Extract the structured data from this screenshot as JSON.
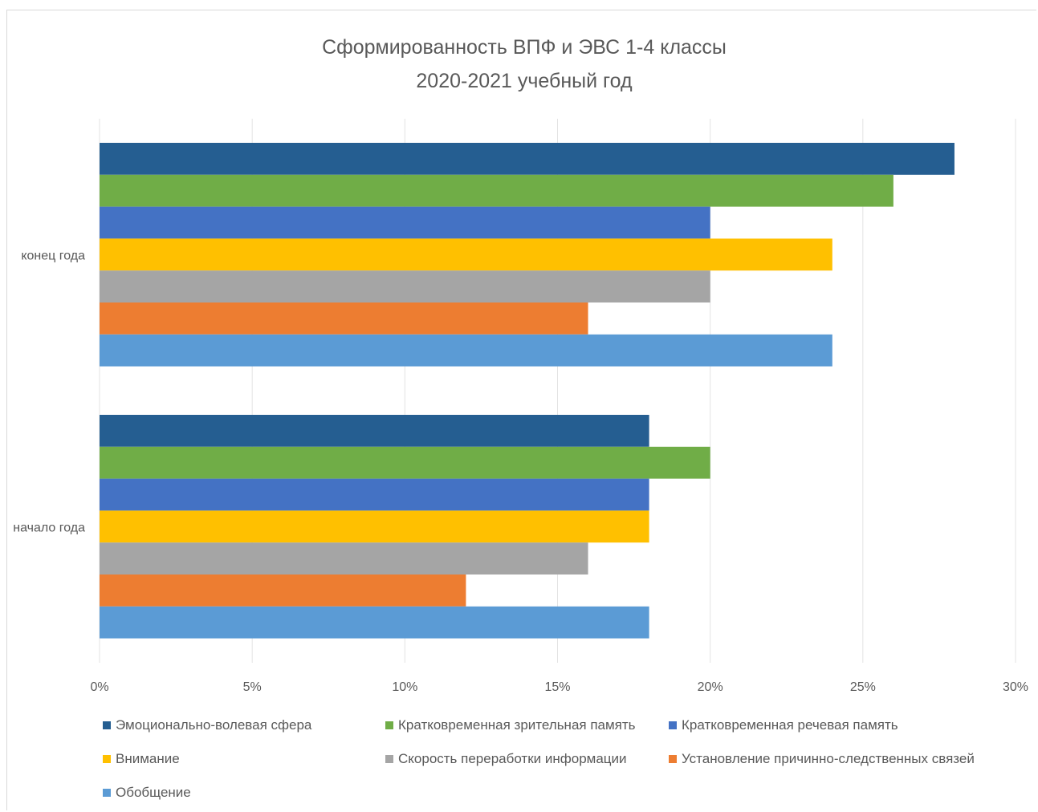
{
  "chart_data": {
    "type": "bar",
    "orientation": "horizontal",
    "title": "Сформированность ВПФ и ЭВС 1-4 классы",
    "subtitle": "2020-2021 учебный год",
    "categories": [
      "конец года",
      "начало года"
    ],
    "x_ticks": [
      "0%",
      "5%",
      "10%",
      "15%",
      "20%",
      "25%",
      "30%"
    ],
    "xlim": [
      0,
      30
    ],
    "grid": true,
    "legend_position": "bottom",
    "series": [
      {
        "name": "Эмоционально-волевая сфера",
        "color": "#255E91",
        "values": [
          28,
          18
        ]
      },
      {
        "name": "Кратковременная зрительная память",
        "color": "#70AD47",
        "values": [
          26,
          20
        ]
      },
      {
        "name": "Кратковременная речевая память",
        "color": "#4472C4",
        "values": [
          20,
          18
        ]
      },
      {
        "name": "Внимание",
        "color": "#FFC000",
        "values": [
          24,
          18
        ]
      },
      {
        "name": "Скорость переработки информации",
        "color": "#A5A5A5",
        "values": [
          20,
          16
        ]
      },
      {
        "name": "Установление причинно-следственных связей",
        "color": "#ED7D31",
        "values": [
          16,
          12
        ]
      },
      {
        "name": "Обобщение",
        "color": "#5B9BD5",
        "values": [
          24,
          18
        ]
      }
    ]
  }
}
